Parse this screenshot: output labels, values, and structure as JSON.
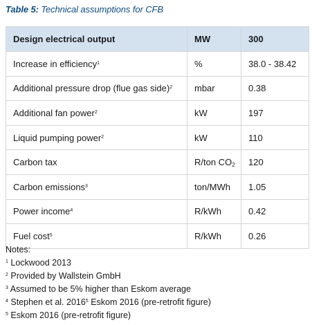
{
  "caption": {
    "prefix": "Table 5:",
    "text": "Technical assumptions for CFB"
  },
  "table": {
    "header": {
      "label": "Design electrical output",
      "unit": "MW",
      "value": "300"
    },
    "rows": [
      {
        "label": "Increase in efficiency",
        "sup": "1",
        "unit": "%",
        "unit_sub": "",
        "value": "38.0 - 38.42"
      },
      {
        "label": "Additional pressure drop (flue gas side)",
        "sup": "2",
        "unit": "mbar",
        "unit_sub": "",
        "value": "0.38"
      },
      {
        "label": "Additional fan power",
        "sup": "2",
        "unit": "kW",
        "unit_sub": "",
        "value": "197"
      },
      {
        "label": "Liquid pumping power",
        "sup": "2",
        "unit": "kW",
        "unit_sub": "",
        "value": "110"
      },
      {
        "label": "Carbon tax",
        "sup": "",
        "unit": "R/ton CO",
        "unit_sub": "2",
        "value": "120"
      },
      {
        "label": "Carbon emissions",
        "sup": "3",
        "unit": "ton/MWh",
        "unit_sub": "",
        "value": "1.05"
      },
      {
        "label": "Power income",
        "sup": "4",
        "unit": "R/kWh",
        "unit_sub": "",
        "value": "0.42"
      },
      {
        "label": "Fuel cost",
        "sup": "5",
        "unit": "R/kWh",
        "unit_sub": "",
        "value": "0.26"
      }
    ]
  },
  "notes": {
    "title": "Notes:",
    "items": [
      {
        "num": "1",
        "text": " Lockwood 2013",
        "num2": "",
        "text2": ""
      },
      {
        "num": "2",
        "text": " Provided by Wallstein GmbH",
        "num2": "",
        "text2": ""
      },
      {
        "num": "3",
        "text": " Assumed to be 5% higher than Eskom average",
        "num2": "",
        "text2": ""
      },
      {
        "num": "4",
        "text": " Stephen et al. 2016",
        "num2": "5",
        "text2": " Eskom 2016 (pre-retrofit figure)"
      },
      {
        "num": "5",
        "text": "  Eskom 2016 (pre-retrofit figure)",
        "num2": "",
        "text2": ""
      }
    ]
  }
}
